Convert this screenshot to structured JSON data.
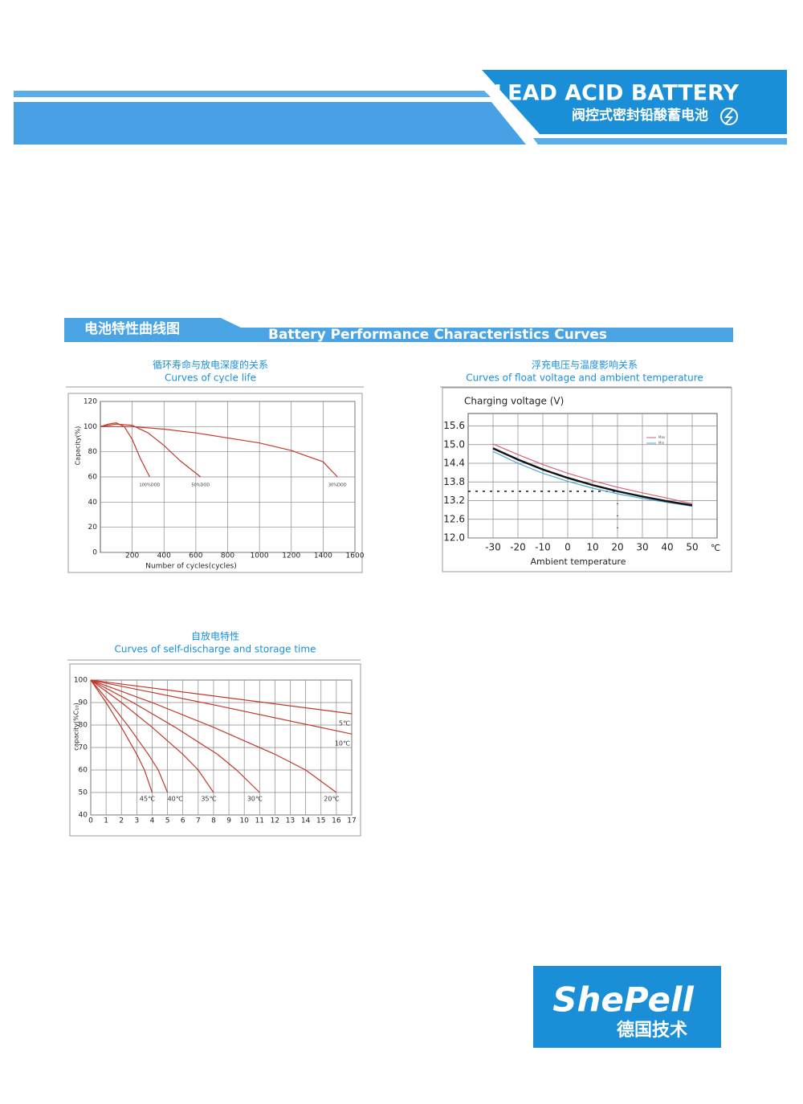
{
  "header": {
    "title": "LEAD ACID BATTERY",
    "subtitle": "阀控式密封铅酸蓄电池"
  },
  "section": {
    "title_cn": "电池特性曲线图",
    "title_en": "Battery Performance Characteristics Curves"
  },
  "chart_data": [
    {
      "type": "line",
      "title": "循环寿命与放电深度的关系",
      "subtitle": "Curves of cycle life",
      "ylabel": "Capacity(%)",
      "xlabel": "Number of cycles(cycles)",
      "xlim": [
        0,
        1600
      ],
      "xticks": [
        200,
        400,
        600,
        800,
        1000,
        1200,
        1400,
        1600
      ],
      "ylim": [
        0,
        120
      ],
      "yticks": [
        0,
        20,
        40,
        60,
        80,
        100,
        120
      ],
      "grid": true,
      "series": [
        {
          "name": "100%DOD",
          "color": "#c0392b",
          "x": [
            0,
            50,
            100,
            150,
            200,
            250,
            310
          ],
          "values": [
            100,
            102,
            103,
            100,
            90,
            75,
            60
          ]
        },
        {
          "name": "50%DOD",
          "color": "#c0392b",
          "x": [
            0,
            100,
            200,
            300,
            400,
            500,
            630
          ],
          "values": [
            100,
            102,
            101,
            95,
            85,
            73,
            60
          ]
        },
        {
          "name": "30%DOD",
          "color": "#c0392b",
          "x": [
            0,
            200,
            400,
            600,
            800,
            1000,
            1200,
            1400,
            1490
          ],
          "values": [
            100,
            100,
            98,
            95,
            91,
            87,
            81,
            72,
            60
          ]
        }
      ]
    },
    {
      "type": "line",
      "title": "浮充电压与温度影响关系",
      "subtitle": "Curves of float voltage and ambient temperature",
      "ylabel": "Charging voltage (V)",
      "xlabel": "Ambient temperature",
      "x_unit": "℃",
      "xlim": [
        -40,
        60
      ],
      "xticks": [
        -30,
        -20,
        -10,
        0,
        10,
        20,
        30,
        40,
        50
      ],
      "ylim": [
        12,
        16
      ],
      "yticks": [
        {
          "value": 12,
          "label": "12.0"
        },
        12.6,
        13.2,
        13.8,
        14.4,
        {
          "value": 15,
          "label": "15.0"
        },
        15.6
      ],
      "grid": true,
      "legend": "upper right",
      "marker": {
        "x": 20,
        "y": 13.5
      },
      "series": [
        {
          "name": "Max",
          "color": "#d9607a",
          "x": [
            -30,
            -20,
            -10,
            0,
            10,
            20,
            30,
            40,
            50
          ],
          "values": [
            15.02,
            14.68,
            14.36,
            14.08,
            13.84,
            13.63,
            13.45,
            13.28,
            13.1
          ]
        },
        {
          "name": "Min",
          "color": "#4aa8d8",
          "x": [
            -30,
            -20,
            -10,
            0,
            10,
            20,
            30,
            40,
            50
          ],
          "values": [
            14.78,
            14.4,
            14.08,
            13.82,
            13.6,
            13.42,
            13.27,
            13.14,
            13.02
          ]
        },
        {
          "color": "#111111",
          "x": [
            -30,
            -20,
            -10,
            0,
            10,
            20,
            30,
            40,
            50
          ],
          "values": [
            14.88,
            14.52,
            14.2,
            13.93,
            13.7,
            13.5,
            13.33,
            13.18,
            13.05
          ]
        }
      ]
    },
    {
      "type": "line",
      "title": "自放电特性",
      "subtitle": "Curves of self-discharge and storage time",
      "ylabel": "capacity(%C₁₀)",
      "xlim": [
        0,
        17
      ],
      "xticks": [
        0,
        1,
        2,
        3,
        4,
        5,
        6,
        7,
        8,
        9,
        10,
        11,
        12,
        13,
        14,
        15,
        16,
        17
      ],
      "ylim": [
        40,
        100
      ],
      "yticks": [
        40,
        50,
        60,
        70,
        80,
        90,
        100
      ],
      "grid": true,
      "series": [
        {
          "name": "5℃",
          "color": "#c0392b",
          "x": [
            0,
            17
          ],
          "values": [
            100,
            85
          ]
        },
        {
          "name": "10℃",
          "color": "#c0392b",
          "x": [
            0,
            8,
            17
          ],
          "values": [
            100,
            89,
            76
          ]
        },
        {
          "name": "20℃",
          "color": "#c0392b",
          "x": [
            0,
            4,
            8,
            12,
            14,
            16
          ],
          "values": [
            100,
            90,
            79,
            67,
            60,
            50
          ]
        },
        {
          "name": "30℃",
          "color": "#c0392b",
          "x": [
            0,
            2.75,
            5.5,
            8.25,
            9.5,
            11
          ],
          "values": [
            100,
            90,
            79,
            67,
            60,
            50
          ]
        },
        {
          "name": "35℃",
          "color": "#c0392b",
          "x": [
            0,
            2,
            4,
            6,
            7,
            8
          ],
          "values": [
            100,
            90,
            79,
            67,
            60,
            50
          ]
        },
        {
          "name": "40℃",
          "color": "#c0392b",
          "x": [
            0,
            1.25,
            2.5,
            3.75,
            4.4,
            5
          ],
          "values": [
            100,
            90,
            79,
            67,
            60,
            50
          ]
        },
        {
          "name": "45℃",
          "color": "#c0392b",
          "x": [
            0,
            1,
            2,
            3,
            3.5,
            4
          ],
          "values": [
            100,
            90,
            79,
            67,
            60,
            50
          ]
        }
      ]
    }
  ],
  "logo": {
    "name": "ShePell",
    "tagline": "德国技术"
  }
}
